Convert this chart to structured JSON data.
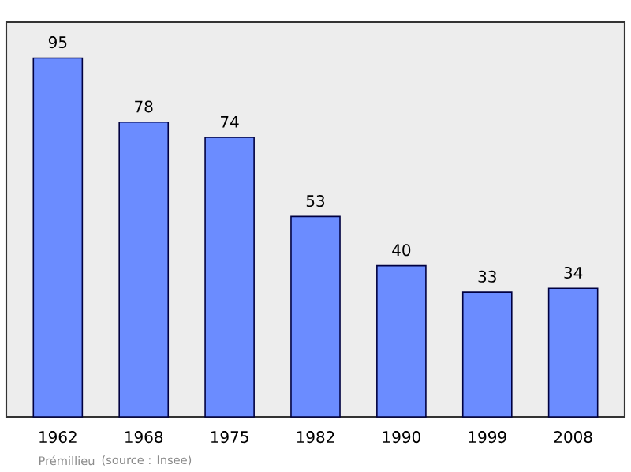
{
  "chart_data": {
    "type": "bar",
    "categories": [
      "1962",
      "1968",
      "1975",
      "1982",
      "1990",
      "1999",
      "2008"
    ],
    "values": [
      95,
      78,
      74,
      53,
      40,
      33,
      34
    ],
    "color": "#6b8cff",
    "data_labels": true,
    "annotations": [
      "Prémillieu",
      "(source : Insee)"
    ]
  }
}
